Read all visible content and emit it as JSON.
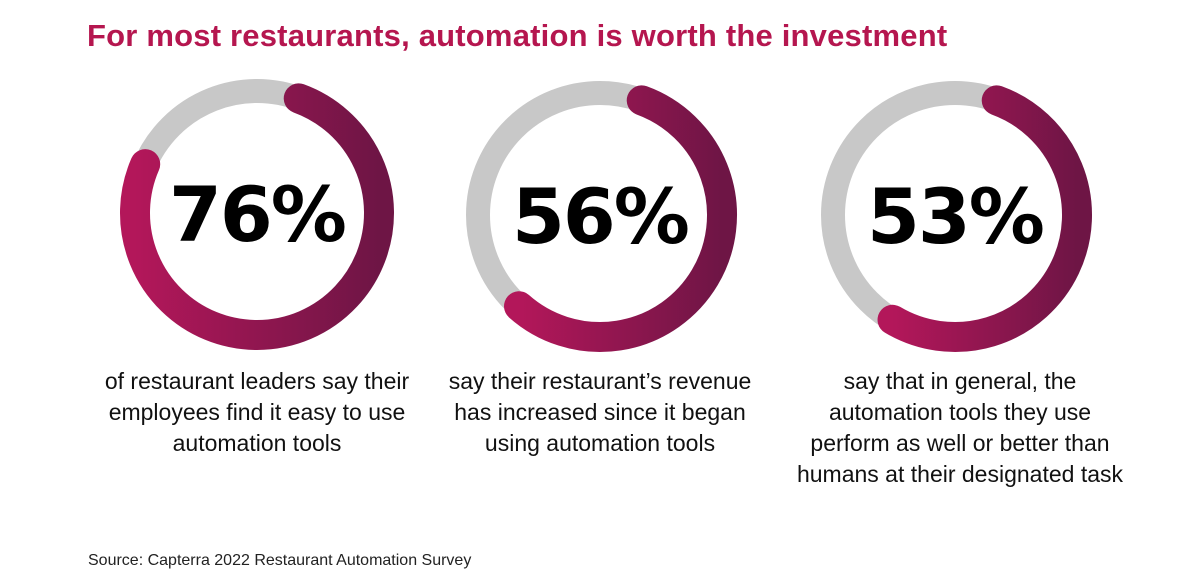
{
  "title": "For most restaurants, automation is worth the investment",
  "source": "Source: Capterra 2022 Restaurant Automation Survey",
  "colors": {
    "title": "#b5164f",
    "arc_light": "#b3175a",
    "arc_dark": "#6e1545",
    "track": "#c8c8c8",
    "label": "#000000"
  },
  "chart_data": {
    "type": "donut",
    "items": [
      {
        "value": 76,
        "label": "76%",
        "description": "of restaurant leaders say their employees find it easy to use automation tools"
      },
      {
        "value": 56,
        "label": "56%",
        "description": "say their restaurant’s revenue has increased since it began using automation tools"
      },
      {
        "value": 53,
        "label": "53%",
        "description": "say that in general, the automation tools they use perform as well or better than humans at their designated task"
      }
    ]
  }
}
